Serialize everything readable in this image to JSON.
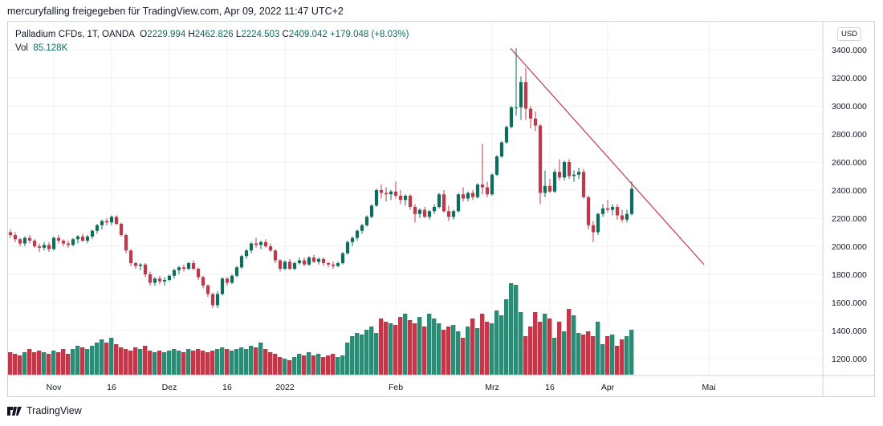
{
  "caption": "mercuryfalling freigegeben für TradingView.com, Apr 09, 2022 11:47 UTC+2",
  "legend": {
    "symbol": "Palladium CFDs, 1T, OANDA",
    "open_label": "O",
    "open": "2229.994",
    "high_label": "H",
    "high": "2462.826",
    "low_label": "L",
    "low": "2224.503",
    "close_label": "C",
    "close": "2409.042",
    "change": "+179.048 (+8.03%)",
    "vol_label": "Vol",
    "vol": "85.128K"
  },
  "unit_badge": "USD",
  "footer": {
    "brand": "TradingView"
  },
  "colors": {
    "up": "#0f6d5c",
    "down": "#c0394a",
    "vol_up": "#2e8a74",
    "vol_down": "#c0394a",
    "trend": "#c23645",
    "grid": "#eef0f3"
  },
  "chart_data": {
    "type": "candlestick",
    "title": "Palladium CFDs, 1T, OANDA",
    "ylabel": "USD",
    "ylim": [
      1080,
      3580
    ],
    "y_ticks": [
      "3400.000",
      "3200.000",
      "3000.000",
      "2800.000",
      "2600.000",
      "2400.000",
      "2200.000",
      "2000.000",
      "1800.000",
      "1600.000",
      "1400.000",
      "1200.000"
    ],
    "x_ticks": [
      {
        "label": "Nov",
        "i": 9
      },
      {
        "label": "16",
        "i": 21
      },
      {
        "label": "Dez",
        "i": 33
      },
      {
        "label": "16",
        "i": 45
      },
      {
        "label": "2022",
        "i": 57
      },
      {
        "label": "Feb",
        "i": 80
      },
      {
        "label": "Mrz",
        "i": 100
      },
      {
        "label": "16",
        "i": 112
      },
      {
        "label": "Apr",
        "i": 124
      },
      {
        "label": "Mai",
        "i": 145
      }
    ],
    "ohlc": [
      [
        2100,
        2120,
        2060,
        2080
      ],
      [
        2080,
        2100,
        2030,
        2050
      ],
      [
        2050,
        2060,
        2000,
        2020
      ],
      [
        2020,
        2070,
        2000,
        2060
      ],
      [
        2060,
        2080,
        2020,
        2040
      ],
      [
        2040,
        2050,
        1990,
        2000
      ],
      [
        2000,
        2020,
        1960,
        1990
      ],
      [
        1990,
        2030,
        1970,
        2010
      ],
      [
        2010,
        2030,
        1960,
        1980
      ],
      [
        1980,
        2070,
        1970,
        2060
      ],
      [
        2060,
        2080,
        2020,
        2040
      ],
      [
        2040,
        2050,
        2000,
        2020
      ],
      [
        2020,
        2040,
        1990,
        2010
      ],
      [
        2010,
        2060,
        2000,
        2050
      ],
      [
        2050,
        2080,
        2020,
        2070
      ],
      [
        2070,
        2090,
        2030,
        2040
      ],
      [
        2040,
        2080,
        2020,
        2070
      ],
      [
        2070,
        2120,
        2050,
        2110
      ],
      [
        2110,
        2160,
        2090,
        2150
      ],
      [
        2150,
        2190,
        2120,
        2180
      ],
      [
        2180,
        2200,
        2150,
        2170
      ],
      [
        2170,
        2220,
        2150,
        2210
      ],
      [
        2210,
        2220,
        2150,
        2160
      ],
      [
        2160,
        2170,
        2070,
        2080
      ],
      [
        2080,
        2090,
        1950,
        1970
      ],
      [
        1970,
        1980,
        1860,
        1880
      ],
      [
        1880,
        1890,
        1840,
        1860
      ],
      [
        1860,
        1880,
        1830,
        1870
      ],
      [
        1870,
        1880,
        1780,
        1800
      ],
      [
        1800,
        1820,
        1720,
        1740
      ],
      [
        1740,
        1780,
        1720,
        1770
      ],
      [
        1770,
        1790,
        1730,
        1750
      ],
      [
        1750,
        1780,
        1720,
        1760
      ],
      [
        1760,
        1800,
        1750,
        1790
      ],
      [
        1790,
        1840,
        1770,
        1830
      ],
      [
        1830,
        1860,
        1800,
        1850
      ],
      [
        1850,
        1870,
        1820,
        1840
      ],
      [
        1840,
        1890,
        1830,
        1880
      ],
      [
        1880,
        1900,
        1830,
        1840
      ],
      [
        1840,
        1850,
        1760,
        1780
      ],
      [
        1780,
        1790,
        1700,
        1720
      ],
      [
        1720,
        1730,
        1640,
        1660
      ],
      [
        1660,
        1670,
        1560,
        1580
      ],
      [
        1580,
        1680,
        1560,
        1660
      ],
      [
        1660,
        1780,
        1650,
        1770
      ],
      [
        1770,
        1780,
        1720,
        1740
      ],
      [
        1740,
        1800,
        1730,
        1790
      ],
      [
        1790,
        1860,
        1780,
        1850
      ],
      [
        1850,
        1940,
        1840,
        1930
      ],
      [
        1930,
        1980,
        1910,
        1970
      ],
      [
        1970,
        2030,
        1950,
        2020
      ],
      [
        2020,
        2060,
        1990,
        2010
      ],
      [
        2010,
        2040,
        1980,
        2030
      ],
      [
        2030,
        2050,
        1990,
        2000
      ],
      [
        2000,
        2020,
        1960,
        1970
      ],
      [
        1970,
        1980,
        1880,
        1900
      ],
      [
        1900,
        1910,
        1820,
        1840
      ],
      [
        1840,
        1900,
        1830,
        1890
      ],
      [
        1890,
        1910,
        1830,
        1840
      ],
      [
        1840,
        1890,
        1830,
        1880
      ],
      [
        1880,
        1920,
        1870,
        1900
      ],
      [
        1900,
        1920,
        1860,
        1870
      ],
      [
        1870,
        1930,
        1860,
        1920
      ],
      [
        1920,
        1940,
        1880,
        1890
      ],
      [
        1890,
        1920,
        1870,
        1910
      ],
      [
        1910,
        1920,
        1860,
        1880
      ],
      [
        1880,
        1890,
        1850,
        1870
      ],
      [
        1870,
        1890,
        1840,
        1860
      ],
      [
        1860,
        1890,
        1850,
        1880
      ],
      [
        1880,
        1960,
        1870,
        1950
      ],
      [
        1950,
        2040,
        1940,
        2030
      ],
      [
        2030,
        2070,
        2000,
        2060
      ],
      [
        2060,
        2120,
        2040,
        2110
      ],
      [
        2110,
        2160,
        2090,
        2150
      ],
      [
        2150,
        2220,
        2140,
        2210
      ],
      [
        2210,
        2300,
        2200,
        2290
      ],
      [
        2290,
        2410,
        2280,
        2400
      ],
      [
        2400,
        2440,
        2340,
        2380
      ],
      [
        2380,
        2420,
        2320,
        2370
      ],
      [
        2370,
        2400,
        2330,
        2390
      ],
      [
        2390,
        2460,
        2340,
        2360
      ],
      [
        2360,
        2400,
        2300,
        2330
      ],
      [
        2330,
        2370,
        2290,
        2360
      ],
      [
        2360,
        2370,
        2260,
        2280
      ],
      [
        2280,
        2300,
        2170,
        2230
      ],
      [
        2230,
        2270,
        2200,
        2260
      ],
      [
        2260,
        2280,
        2200,
        2210
      ],
      [
        2210,
        2260,
        2190,
        2250
      ],
      [
        2250,
        2300,
        2230,
        2280
      ],
      [
        2280,
        2380,
        2270,
        2370
      ],
      [
        2370,
        2400,
        2240,
        2250
      ],
      [
        2250,
        2290,
        2180,
        2210
      ],
      [
        2210,
        2260,
        2190,
        2250
      ],
      [
        2250,
        2380,
        2240,
        2370
      ],
      [
        2370,
        2420,
        2320,
        2340
      ],
      [
        2340,
        2390,
        2320,
        2380
      ],
      [
        2380,
        2400,
        2330,
        2350
      ],
      [
        2350,
        2450,
        2340,
        2440
      ],
      [
        2440,
        2730,
        2370,
        2420
      ],
      [
        2420,
        2460,
        2350,
        2370
      ],
      [
        2370,
        2520,
        2360,
        2510
      ],
      [
        2510,
        2650,
        2500,
        2640
      ],
      [
        2640,
        2750,
        2630,
        2740
      ],
      [
        2740,
        2860,
        2730,
        2850
      ],
      [
        2850,
        3000,
        2840,
        2990
      ],
      [
        2990,
        3410,
        2930,
        2990
      ],
      [
        2990,
        3210,
        2900,
        3170
      ],
      [
        3170,
        3270,
        2900,
        2980
      ],
      [
        2980,
        3000,
        2840,
        2910
      ],
      [
        2910,
        2960,
        2820,
        2860
      ],
      [
        2860,
        2870,
        2300,
        2380
      ],
      [
        2380,
        2540,
        2350,
        2430
      ],
      [
        2430,
        2480,
        2380,
        2390
      ],
      [
        2390,
        2550,
        2380,
        2530
      ],
      [
        2530,
        2620,
        2470,
        2490
      ],
      [
        2490,
        2610,
        2470,
        2600
      ],
      [
        2600,
        2620,
        2480,
        2500
      ],
      [
        2500,
        2540,
        2460,
        2510
      ],
      [
        2510,
        2560,
        2480,
        2530
      ],
      [
        2530,
        2550,
        2340,
        2350
      ],
      [
        2350,
        2360,
        2120,
        2150
      ],
      [
        2150,
        2180,
        2030,
        2100
      ],
      [
        2100,
        2240,
        2080,
        2230
      ],
      [
        2230,
        2300,
        2210,
        2270
      ],
      [
        2270,
        2330,
        2240,
        2260
      ],
      [
        2260,
        2300,
        2220,
        2280
      ],
      [
        2280,
        2300,
        2190,
        2220
      ],
      [
        2220,
        2260,
        2170,
        2190
      ],
      [
        2190,
        2260,
        2170,
        2230
      ],
      [
        2230,
        2460,
        2220,
        2410
      ]
    ],
    "volume": [
      14,
      13,
      12,
      14,
      16,
      14,
      15,
      14,
      13,
      15,
      14,
      16,
      13,
      16,
      18,
      17,
      16,
      18,
      20,
      22,
      20,
      23,
      19,
      17,
      16,
      15,
      17,
      16,
      18,
      15,
      14,
      15,
      14,
      15,
      16,
      15,
      14,
      16,
      15,
      16,
      15,
      14,
      15,
      16,
      17,
      16,
      15,
      16,
      17,
      16,
      18,
      17,
      20,
      16,
      14,
      13,
      11,
      10,
      9,
      11,
      13,
      12,
      14,
      12,
      13,
      11,
      12,
      13,
      11,
      12,
      20,
      24,
      26,
      25,
      28,
      30,
      26,
      35,
      33,
      32,
      31,
      36,
      38,
      34,
      32,
      36,
      30,
      38,
      35,
      32,
      28,
      30,
      31,
      27,
      23,
      30,
      35,
      29,
      38,
      33,
      32,
      40,
      37,
      47,
      57,
      56,
      39,
      24,
      30,
      39,
      33,
      38,
      35,
      23,
      33,
      27,
      41,
      37,
      26,
      25,
      27,
      24,
      33,
      19,
      24,
      25,
      18,
      22,
      24,
      28
    ]
  }
}
